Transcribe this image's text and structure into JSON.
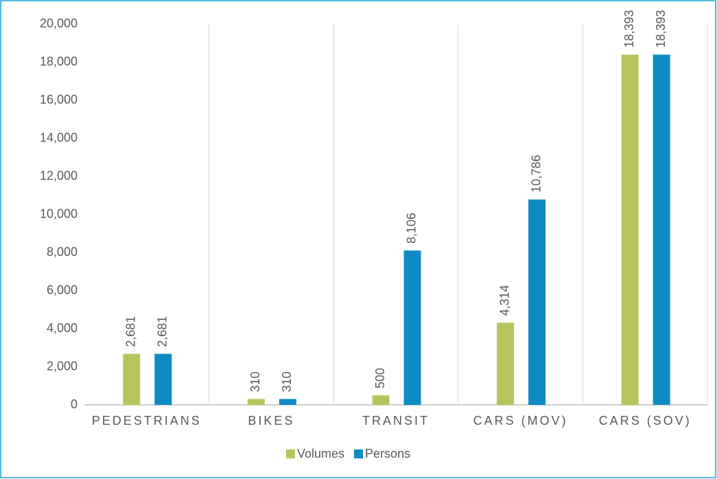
{
  "chart_data": {
    "type": "bar",
    "categories": [
      "PEDESTRIANS",
      "BIKES",
      "TRANSIT",
      "CARS (MOV)",
      "CARS (SOV)"
    ],
    "series": [
      {
        "name": "Volumes",
        "color": "#b7c45b",
        "values": [
          2681,
          310,
          500,
          4314,
          18393
        ],
        "value_labels": [
          "2,681",
          "310",
          "500",
          "4,314",
          "18,393"
        ]
      },
      {
        "name": "Persons",
        "color": "#0e8bc4",
        "values": [
          2681,
          310,
          8106,
          10786,
          18393
        ],
        "value_labels": [
          "2,681",
          "310",
          "8,106",
          "10,786",
          "18,393"
        ]
      }
    ],
    "ylim": [
      0,
      20000
    ],
    "yticks": [
      0,
      {
        "value": 2000,
        "label": "2,000"
      },
      {
        "value": 4000,
        "label": "4,000"
      },
      {
        "value": 6000,
        "label": "6,000"
      },
      {
        "value": 8000,
        "label": "8,000"
      },
      {
        "value": 10000,
        "label": "10,000"
      },
      {
        "value": 12000,
        "label": "12,000"
      },
      {
        "value": 14000,
        "label": "14,000"
      },
      {
        "value": 16000,
        "label": "16,000"
      },
      {
        "value": 18000,
        "label": "18,000"
      },
      {
        "value": 20000,
        "label": "20,000"
      }
    ],
    "legend": "bottom"
  }
}
